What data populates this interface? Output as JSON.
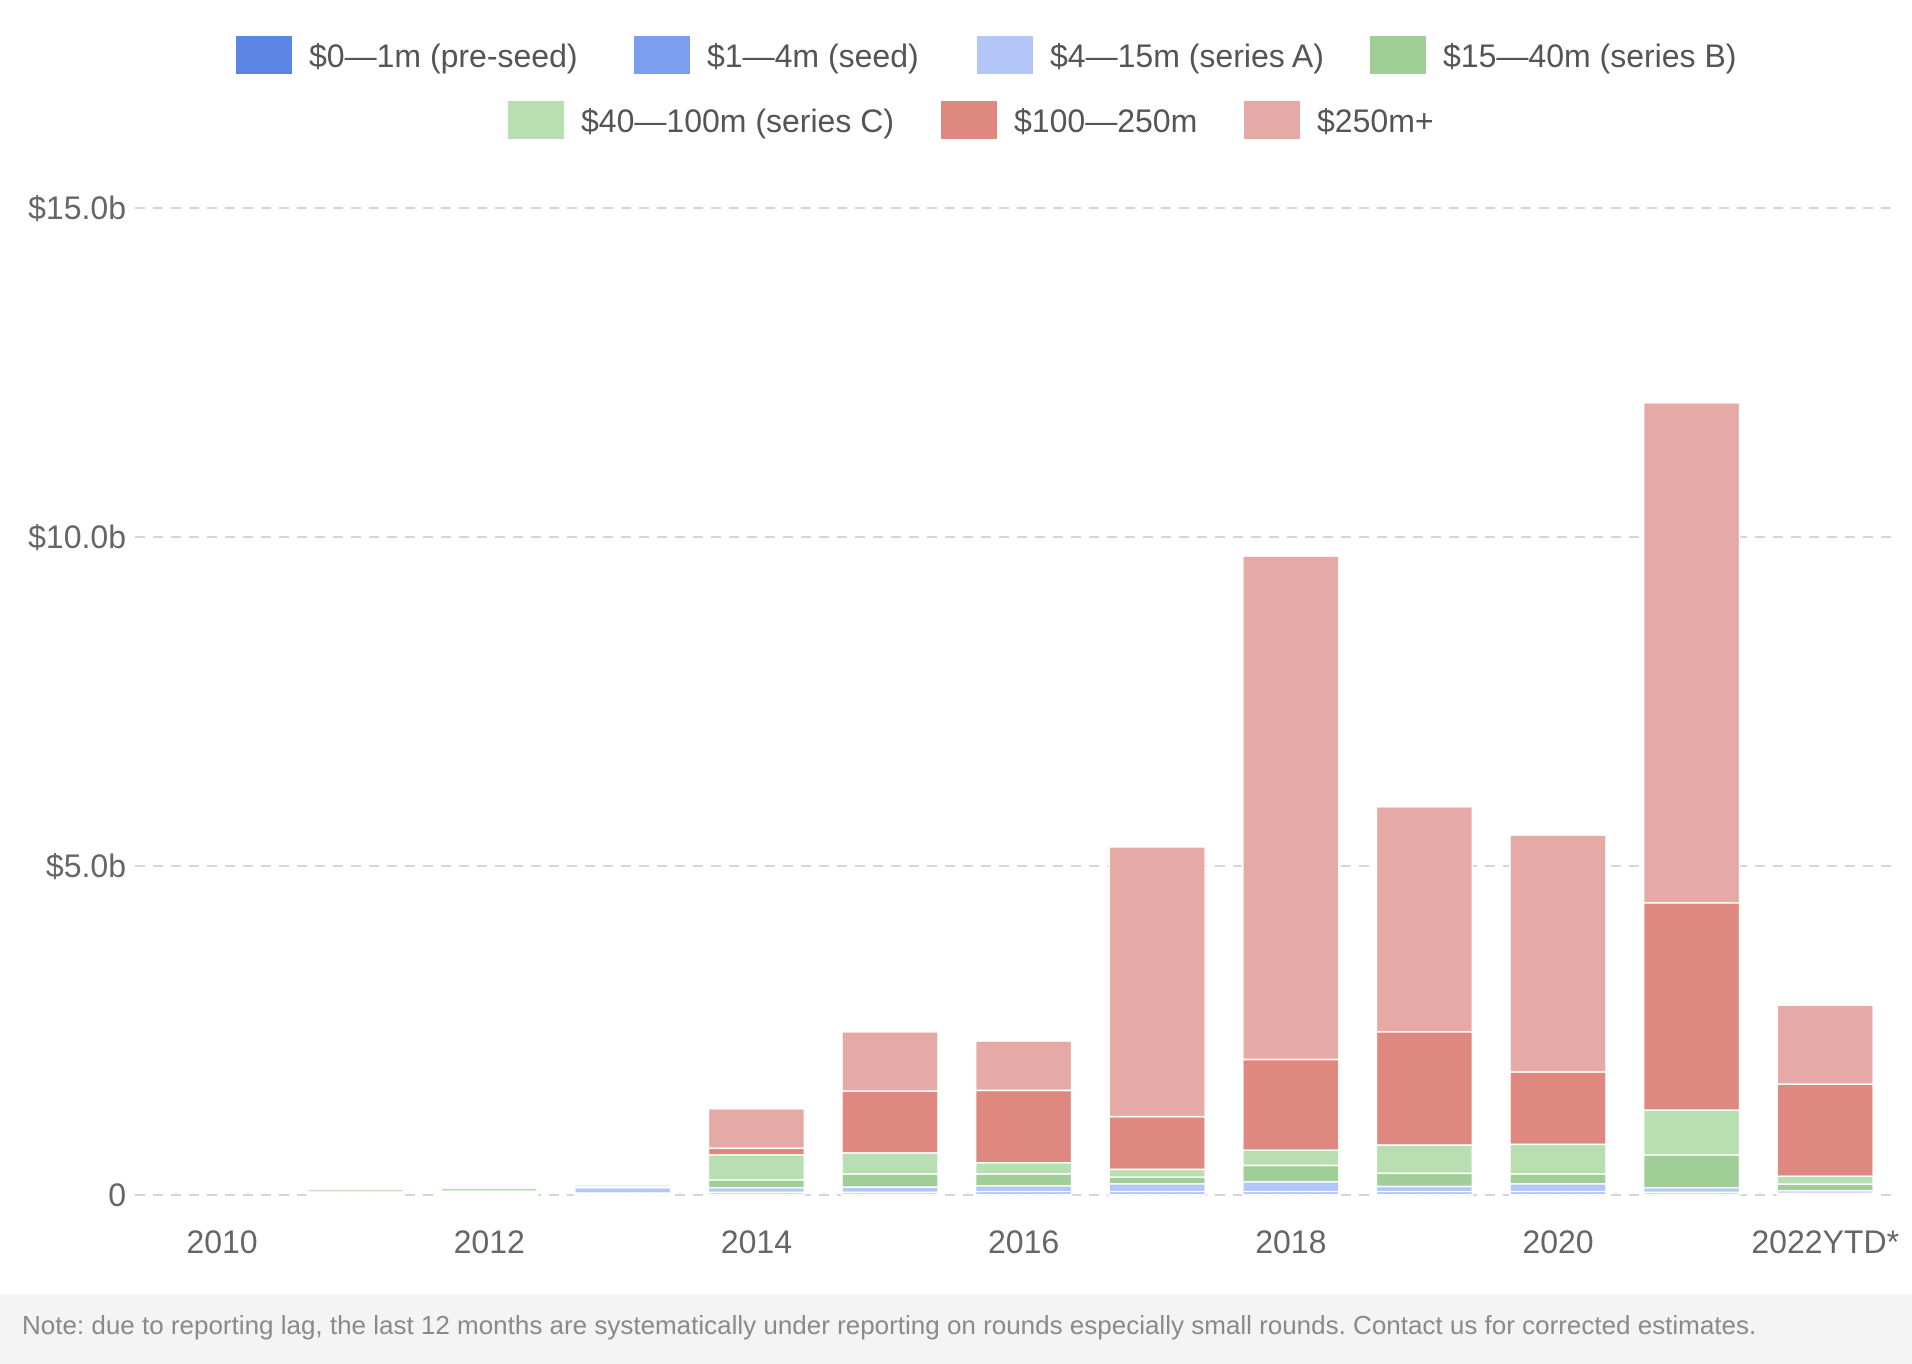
{
  "chart_data": {
    "type": "bar",
    "stacked": true,
    "grid": true,
    "legend_position": "top",
    "categories": [
      "2010",
      "2011",
      "2012",
      "2013",
      "2014",
      "2015",
      "2016",
      "2017",
      "2018",
      "2019",
      "2020",
      "2021",
      "2022YTD*"
    ],
    "x_tick_labels": [
      "2010",
      "",
      "2012",
      "",
      "2014",
      "",
      "2016",
      "",
      "2018",
      "",
      "2020",
      "",
      "2022YTD*"
    ],
    "y_ticks": [
      {
        "value": 0,
        "label": "0"
      },
      {
        "value": 5,
        "label": "$5.0b"
      },
      {
        "value": 10,
        "label": "$10.0b"
      },
      {
        "value": 15,
        "label": "$15.0b"
      }
    ],
    "ylim": [
      0,
      15
    ],
    "y_unit": "$b",
    "series": [
      {
        "name": "$0—1m (pre-seed)",
        "color": "#5b86e5",
        "values": [
          0,
          0.005,
          0.005,
          0.01,
          0.01,
          0.01,
          0.01,
          0.01,
          0.01,
          0.01,
          0.01,
          0.01,
          0.005
        ]
      },
      {
        "name": "$1—4m (seed)",
        "color": "#7b9ef0",
        "values": [
          0,
          0.01,
          0.01,
          0.02,
          0.03,
          0.03,
          0.04,
          0.04,
          0.04,
          0.04,
          0.04,
          0.03,
          0.02
        ]
      },
      {
        "name": "$4—15m (series A)",
        "color": "#b3c6f7",
        "values": [
          0,
          0.02,
          0.02,
          0.08,
          0.07,
          0.08,
          0.09,
          0.12,
          0.15,
          0.08,
          0.12,
          0.07,
          0.04
        ]
      },
      {
        "name": "$15—40m (series B)",
        "color": "#9fcf97",
        "values": [
          0,
          0.01,
          0.02,
          0.02,
          0.12,
          0.2,
          0.18,
          0.1,
          0.25,
          0.2,
          0.15,
          0.5,
          0.1
        ]
      },
      {
        "name": "$40—100m (series C)",
        "color": "#b9deb1",
        "values": [
          0,
          0.04,
          0.05,
          0.03,
          0.38,
          0.32,
          0.17,
          0.12,
          0.23,
          0.43,
          0.45,
          0.68,
          0.12
        ]
      },
      {
        "name": "$100—250m",
        "color": "#df8880",
        "values": [
          0,
          0,
          0,
          0,
          0.1,
          0.94,
          1.1,
          0.8,
          1.38,
          1.72,
          1.1,
          3.15,
          1.4
        ]
      },
      {
        "name": "$250m+",
        "color": "#e6aaa6",
        "values": [
          0,
          0,
          0,
          0,
          0.6,
          0.9,
          0.75,
          4.1,
          7.65,
          3.42,
          3.6,
          7.6,
          1.2
        ]
      }
    ]
  },
  "note": "Note: due to reporting lag, the last 12 months are systematically under reporting on rounds especially small rounds. Contact us for corrected estimates."
}
